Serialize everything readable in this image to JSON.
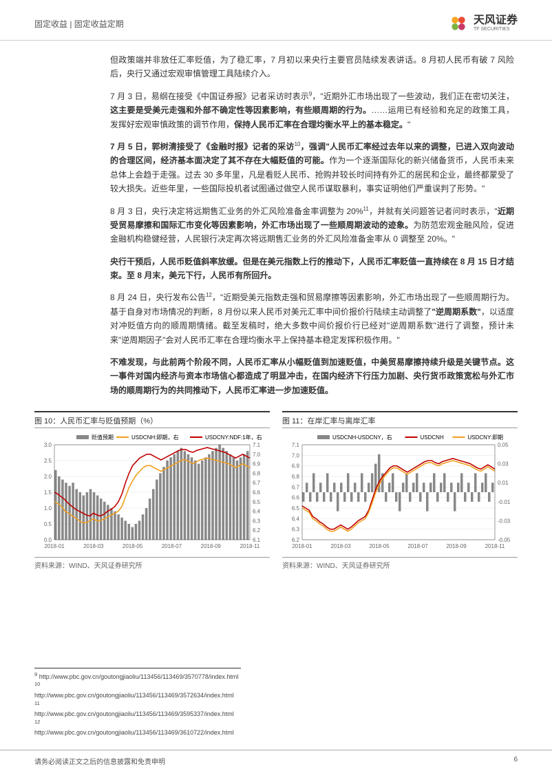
{
  "header": {
    "category": "固定收益 | 固定收益定期",
    "logo_cn": "天风证券",
    "logo_en": "TF SECURITIES"
  },
  "paragraphs": {
    "p1": "但政策端并非放任汇率贬值，为了稳汇率，7 月初以来央行主要官员陆续发表讲话。8 月初人民币有破 7 风险后，央行又通过宏观审慎管理工具陆续介入。",
    "p2_a": "7 月 3 日，易纲在接受《中国证券报》记者采访时表示",
    "p2_b": "，\"近期外汇市场出现了一些波动，我们正在密切关注，",
    "p2_c": "这主要是受美元走强和外部不确定性等因素影响，有些顺周期的行为。",
    "p2_d": "……运用已有经验和充足的政策工具，发挥好宏观审慎政策的调节作用，",
    "p2_e": "保持人民币汇率在合理均衡水平上的基本稳定。",
    "p2_f": "\"",
    "p3_a": "7 月 5 日，郭树清接受了《金融时报》记者的采访",
    "p3_b": "，强调\"人民币汇率经过去年以来的调整，已进入双向波动的合理区间，经济基本面决定了其不存在大幅贬值的可能。",
    "p3_c": "作为一个逐渐国际化的新兴储备货币，人民币未来总体上会趋于走强。过去 30 多年里，凡是看贬人民币、抢购并较长时间持有外汇的居民和企业，最终都蒙受了较大损失。近些年里，一些国际投机者试图通过做空人民币谋取暴利，事实证明他们严重误判了形势。\"",
    "p4_a": "8 月 3 日，央行决定将远期售汇业务的外汇风险准备金率调整为 20%",
    "p4_b": "，并就有关问题答记者问时表示，\"",
    "p4_c": "近期受贸易摩擦和国际汇市变化等因素影响，外汇市场出现了一些顺周期波动的迹象。",
    "p4_d": "为防范宏观金融风险，促进金融机构稳健经营，人民银行决定再次将远期售汇业务的外汇风险准备金率从 0 调整至 20%。\"",
    "p5": "央行干预后，人民币贬值斜率放缓。但是在美元指数上行的推动下，人民币汇率贬值一直持续在 8 月 15 日才结束。至 8 月末，美元下行，人民币有所回升。",
    "p6_a": "8 月 24 日，央行发布公告",
    "p6_b": "，\"近期受美元指数走强和贸易摩擦等因素影响，外汇市场出现了一些顺周期行为。基于自身对市场情况的判断，8 月份以来人民币对美元汇率中间价报价行陆续主动调整了",
    "p6_c": "\"逆周期系数\"",
    "p6_d": "，以适度对冲贬值方向的顺周期情绪。截至发稿时，绝大多数中间价报价行已经对\"逆周期系数\"进行了调整，预计未来\"逆周期因子\"会对人民币汇率在合理均衡水平上保持基本稳定发挥积极作用。\"",
    "p7": "不难发现，与此前两个阶段不同，人民币汇率从小幅贬值到加速贬值，中美贸易摩擦持续升级是关键节点。这一事件对国内经济与资本市场信心都造成了明显冲击，在国内经济下行压力加剧、央行货币政策宽松与外汇市场的顺周期行为的共同推动下，人民币汇率进一步加速贬值。"
  },
  "chart10": {
    "title": "图 10：人民币汇率与贬值预期（%）",
    "source": "资料来源：WIND、天风证券研究所",
    "legend": {
      "bars": "贬值预期",
      "line_yellow": "USDCNH:即期，右",
      "line_red": "USDCNY:NDF:1年，右"
    },
    "x_labels": [
      "2018-01",
      "2018-03",
      "2018-05",
      "2018-07",
      "2018-09",
      "2018-11"
    ],
    "y_left_ticks": [
      "3.0",
      "2.5",
      "2.0",
      "1.5",
      "1.0",
      "0.5",
      "0.0"
    ],
    "y_right_ticks": [
      "7.1",
      "7.0",
      "6.9",
      "6.8",
      "6.7",
      "6.6",
      "6.5",
      "6.4",
      "6.3",
      "6.2",
      "6.1"
    ],
    "colors": {
      "bars": "#888888",
      "line_yellow": "#f0a020",
      "line_red": "#c00000",
      "grid": "#e0e0e0",
      "background": "#ffffff"
    },
    "bars_data": [
      2.2,
      2.0,
      1.9,
      1.8,
      1.7,
      1.8,
      1.6,
      1.5,
      1.4,
      1.5,
      1.6,
      1.5,
      1.4,
      1.3,
      1.2,
      1.1,
      1.0,
      0.9,
      0.8,
      0.7,
      0.6,
      0.5,
      0.4,
      0.5,
      0.6,
      0.8,
      1.0,
      1.3,
      1.6,
      1.9,
      2.1,
      2.3,
      2.5,
      2.6,
      2.7,
      2.8,
      2.9,
      2.8,
      2.7,
      2.6,
      2.5,
      2.4,
      2.5,
      2.6,
      2.7,
      2.8,
      2.9,
      3.0,
      2.9,
      2.8,
      2.7,
      2.6,
      2.5,
      2.6,
      2.7,
      2.8
    ],
    "line_yellow_data": [
      6.5,
      6.48,
      6.45,
      6.4,
      6.38,
      6.35,
      6.33,
      6.3,
      6.28,
      6.28,
      6.3,
      6.32,
      6.3,
      6.3,
      6.32,
      6.34,
      6.36,
      6.38,
      6.4,
      6.45,
      6.55,
      6.65,
      6.72,
      6.78,
      6.82,
      6.86,
      6.88,
      6.88,
      6.86,
      6.84,
      6.82,
      6.84,
      6.86,
      6.88,
      6.9,
      6.92,
      6.94,
      6.94,
      6.92,
      6.9,
      6.92,
      6.94,
      6.95,
      6.96,
      6.95,
      6.94,
      6.93,
      6.92,
      6.91,
      6.9,
      6.88,
      6.86,
      6.88,
      6.9,
      6.88,
      6.86
    ],
    "line_red_data": [
      6.6,
      6.58,
      6.55,
      6.52,
      6.48,
      6.45,
      6.42,
      6.4,
      6.38,
      6.36,
      6.35,
      6.38,
      6.36,
      6.35,
      6.37,
      6.4,
      6.42,
      6.45,
      6.5,
      6.58,
      6.7,
      6.8,
      6.88,
      6.92,
      6.96,
      6.98,
      7.0,
      7.0,
      6.98,
      6.96,
      6.94,
      6.96,
      6.98,
      7.0,
      7.02,
      7.04,
      7.05,
      7.05,
      7.03,
      7.02,
      7.04,
      7.05,
      7.06,
      7.07,
      7.06,
      7.05,
      7.04,
      7.03,
      7.02,
      7.0,
      6.98,
      6.96,
      6.98,
      7.0,
      6.98,
      6.96
    ]
  },
  "chart11": {
    "title": "图 11：在岸汇率与离岸汇率",
    "source": "资料来源：WIND、天风证券研究所",
    "legend": {
      "bars": "USDCNH-USDCNY，右",
      "line_red": "USDCNH",
      "line_yellow": "USDCNY:即期"
    },
    "x_labels": [
      "2018-01",
      "2018-03",
      "2018-05",
      "2018-07",
      "2018-09",
      "2018-11"
    ],
    "y_left_ticks": [
      "7.1",
      "7.0",
      "6.9",
      "6.8",
      "6.7",
      "6.6",
      "6.5",
      "6.4",
      "6.3",
      "6.2"
    ],
    "y_right_ticks": [
      "0.05",
      "0.03",
      "0.01",
      "-0.01",
      "-0.03",
      "-0.05"
    ],
    "colors": {
      "bars": "#888888",
      "line_yellow": "#f0a020",
      "line_red": "#c00000",
      "grid": "#e0e0e0",
      "background": "#ffffff"
    },
    "bars_data": [
      -0.01,
      0.01,
      -0.01,
      0.02,
      -0.01,
      0.01,
      -0.01,
      0.02,
      -0.01,
      0.01,
      -0.02,
      0.01,
      -0.01,
      0.02,
      -0.01,
      0.01,
      -0.01,
      0.02,
      -0.01,
      0.01,
      0.02,
      0.03,
      0.04,
      0.02,
      -0.01,
      0.01,
      0.02,
      -0.01,
      -0.02,
      0.01,
      0.02,
      -0.01,
      0.01,
      0.02,
      -0.01,
      0.01,
      -0.02,
      0.01,
      0.02,
      -0.01,
      0.01,
      0.02,
      -0.01,
      0.01,
      -0.02,
      0.01,
      0.02,
      -0.01,
      0.01,
      -0.01,
      0.02,
      -0.01,
      0.01,
      0.02,
      -0.01,
      0.01
    ],
    "line_red_data": [
      6.52,
      6.5,
      6.48,
      6.42,
      6.4,
      6.37,
      6.35,
      6.32,
      6.3,
      6.3,
      6.32,
      6.34,
      6.32,
      6.3,
      6.32,
      6.35,
      6.38,
      6.4,
      6.42,
      6.48,
      6.58,
      6.68,
      6.75,
      6.8,
      6.84,
      6.88,
      6.9,
      6.9,
      6.88,
      6.86,
      6.84,
      6.86,
      6.88,
      6.9,
      6.92,
      6.94,
      6.95,
      6.95,
      6.93,
      6.92,
      6.94,
      6.95,
      6.96,
      6.97,
      6.96,
      6.95,
      6.94,
      6.93,
      6.92,
      6.9,
      6.88,
      6.87,
      6.89,
      6.91,
      6.89,
      6.87
    ],
    "line_yellow_data": [
      6.5,
      6.48,
      6.46,
      6.4,
      6.38,
      6.35,
      6.33,
      6.3,
      6.28,
      6.28,
      6.3,
      6.32,
      6.3,
      6.28,
      6.3,
      6.33,
      6.36,
      6.38,
      6.4,
      6.46,
      6.55,
      6.65,
      6.72,
      6.78,
      6.82,
      6.86,
      6.88,
      6.88,
      6.86,
      6.84,
      6.82,
      6.84,
      6.86,
      6.88,
      6.9,
      6.92,
      6.93,
      6.93,
      6.91,
      6.9,
      6.92,
      6.93,
      6.94,
      6.95,
      6.94,
      6.93,
      6.92,
      6.91,
      6.9,
      6.88,
      6.86,
      6.85,
      6.87,
      6.89,
      6.87,
      6.85
    ]
  },
  "footnotes": {
    "fn9": "http://www.pbc.gov.cn/goutongjiaoliu/113456/113469/3570778/index.html",
    "fn10": "http://www.pbc.gov.cn/goutongjiaoliu/113456/113469/3572634/index.html",
    "fn11": "http://www.pbc.gov.cn/goutongjiaoliu/113456/113469/3595337/index.html",
    "fn12": "http://www.pbc.gov.cn/goutongjiaoliu/113456/113469/3610722/index.html"
  },
  "footer": {
    "disclaimer": "请务必阅读正文之后的信息披露和免责申明",
    "page": "6"
  }
}
